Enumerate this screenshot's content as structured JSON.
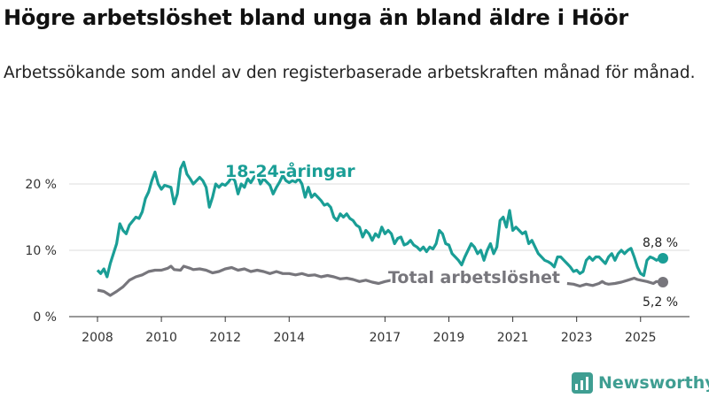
{
  "title": "Högre arbetslöshet bland unga än bland äldre i Höör",
  "subtitle": "Arbetssökande som andel av den registerbaserade arbetskraften månad för månad.",
  "brand": {
    "name": "Newsworthy"
  },
  "colors": {
    "youth": "#1a9e96",
    "total": "#77767c",
    "grid": "#dddddd",
    "axis": "#333333",
    "brand": "#3f9e92"
  },
  "chart_data": {
    "type": "line",
    "title": "Högre arbetslöshet bland unga än bland äldre i Höör",
    "xlabel": "",
    "ylabel": "",
    "xlim": [
      2008.0,
      2026.3
    ],
    "ylim": [
      0,
      23
    ],
    "y_ticks": [
      {
        "value": 0,
        "label": "0 %"
      },
      {
        "value": 10,
        "label": "10 %"
      },
      {
        "value": 20,
        "label": "20 %"
      }
    ],
    "x_ticks": [
      {
        "value": 2008,
        "label": "2008"
      },
      {
        "value": 2010,
        "label": "2010"
      },
      {
        "value": 2012,
        "label": "2012"
      },
      {
        "value": 2014,
        "label": "2014"
      },
      {
        "value": 2017,
        "label": "2017"
      },
      {
        "value": 2019,
        "label": "2019"
      },
      {
        "value": 2021,
        "label": "2021"
      },
      {
        "value": 2023,
        "label": "2023"
      },
      {
        "value": 2025,
        "label": "2025"
      }
    ],
    "series": [
      {
        "name": "18-24-åringar",
        "label": "18-24-åringar",
        "end_label": "8,8 %",
        "points": [
          [
            2008.0,
            7.0
          ],
          [
            2008.1,
            6.5
          ],
          [
            2008.2,
            7.2
          ],
          [
            2008.3,
            6.0
          ],
          [
            2008.4,
            8.0
          ],
          [
            2008.5,
            9.5
          ],
          [
            2008.6,
            11.0
          ],
          [
            2008.7,
            14.0
          ],
          [
            2008.8,
            13.0
          ],
          [
            2008.9,
            12.5
          ],
          [
            2009.0,
            13.8
          ],
          [
            2009.2,
            15.0
          ],
          [
            2009.3,
            14.8
          ],
          [
            2009.4,
            15.8
          ],
          [
            2009.5,
            17.8
          ],
          [
            2009.6,
            18.8
          ],
          [
            2009.7,
            20.5
          ],
          [
            2009.8,
            21.8
          ],
          [
            2009.9,
            20.0
          ],
          [
            2010.0,
            19.2
          ],
          [
            2010.1,
            19.8
          ],
          [
            2010.3,
            19.5
          ],
          [
            2010.4,
            17.0
          ],
          [
            2010.5,
            18.5
          ],
          [
            2010.6,
            22.3
          ],
          [
            2010.7,
            23.3
          ],
          [
            2010.8,
            21.5
          ],
          [
            2010.9,
            20.8
          ],
          [
            2011.0,
            20.0
          ],
          [
            2011.1,
            20.5
          ],
          [
            2011.2,
            21.0
          ],
          [
            2011.3,
            20.5
          ],
          [
            2011.4,
            19.5
          ],
          [
            2011.5,
            16.5
          ],
          [
            2011.6,
            18.0
          ],
          [
            2011.7,
            20.0
          ],
          [
            2011.8,
            19.5
          ],
          [
            2011.9,
            20.0
          ],
          [
            2012.0,
            19.8
          ],
          [
            2012.1,
            20.3
          ],
          [
            2012.2,
            21.0
          ],
          [
            2012.3,
            20.5
          ],
          [
            2012.4,
            18.5
          ],
          [
            2012.5,
            20.0
          ],
          [
            2012.6,
            19.5
          ],
          [
            2012.7,
            20.8
          ],
          [
            2012.8,
            20.2
          ],
          [
            2012.9,
            21.0
          ],
          [
            2013.0,
            21.5
          ],
          [
            2013.1,
            20.0
          ],
          [
            2013.2,
            20.8
          ],
          [
            2013.3,
            20.3
          ],
          [
            2013.4,
            19.8
          ],
          [
            2013.5,
            18.5
          ],
          [
            2013.6,
            19.5
          ],
          [
            2013.7,
            20.3
          ],
          [
            2013.8,
            21.3
          ],
          [
            2013.9,
            20.5
          ],
          [
            2014.0,
            20.2
          ],
          [
            2014.1,
            20.5
          ],
          [
            2014.2,
            20.3
          ],
          [
            2014.3,
            20.8
          ],
          [
            2014.4,
            20.0
          ],
          [
            2014.5,
            18.0
          ],
          [
            2014.6,
            19.5
          ],
          [
            2014.7,
            18.0
          ],
          [
            2014.8,
            18.5
          ],
          [
            2014.9,
            18.0
          ],
          [
            2015.0,
            17.5
          ],
          [
            2015.1,
            16.8
          ],
          [
            2015.2,
            17.0
          ],
          [
            2015.3,
            16.5
          ],
          [
            2015.4,
            15.0
          ],
          [
            2015.5,
            14.5
          ],
          [
            2015.6,
            15.5
          ],
          [
            2015.7,
            15.0
          ],
          [
            2015.8,
            15.5
          ],
          [
            2015.9,
            14.8
          ],
          [
            2016.0,
            14.5
          ],
          [
            2016.1,
            13.8
          ],
          [
            2016.2,
            13.5
          ],
          [
            2016.3,
            12.0
          ],
          [
            2016.4,
            13.0
          ],
          [
            2016.5,
            12.5
          ],
          [
            2016.6,
            11.5
          ],
          [
            2016.7,
            12.5
          ],
          [
            2016.8,
            12.0
          ],
          [
            2016.9,
            13.5
          ],
          [
            2017.0,
            12.5
          ],
          [
            2017.1,
            13.0
          ],
          [
            2017.2,
            12.5
          ],
          [
            2017.3,
            11.0
          ],
          [
            2017.4,
            11.8
          ],
          [
            2017.5,
            12.0
          ],
          [
            2017.6,
            10.8
          ],
          [
            2017.7,
            11.0
          ],
          [
            2017.8,
            11.5
          ],
          [
            2017.9,
            10.8
          ],
          [
            2018.0,
            10.5
          ],
          [
            2018.1,
            10.0
          ],
          [
            2018.2,
            10.5
          ],
          [
            2018.3,
            9.8
          ],
          [
            2018.4,
            10.5
          ],
          [
            2018.5,
            10.2
          ],
          [
            2018.6,
            11.0
          ],
          [
            2018.7,
            13.0
          ],
          [
            2018.8,
            12.5
          ],
          [
            2018.9,
            11.0
          ],
          [
            2019.0,
            10.8
          ],
          [
            2019.1,
            9.5
          ],
          [
            2019.2,
            9.0
          ],
          [
            2019.3,
            8.5
          ],
          [
            2019.4,
            7.8
          ],
          [
            2019.5,
            9.0
          ],
          [
            2019.6,
            10.0
          ],
          [
            2019.7,
            11.0
          ],
          [
            2019.8,
            10.5
          ],
          [
            2019.9,
            9.5
          ],
          [
            2020.0,
            10.0
          ],
          [
            2020.1,
            8.5
          ],
          [
            2020.2,
            10.0
          ],
          [
            2020.3,
            11.0
          ],
          [
            2020.4,
            9.5
          ],
          [
            2020.5,
            10.5
          ],
          [
            2020.6,
            14.5
          ],
          [
            2020.7,
            15.0
          ],
          [
            2020.8,
            13.5
          ],
          [
            2020.9,
            16.0
          ],
          [
            2021.0,
            13.0
          ],
          [
            2021.1,
            13.5
          ],
          [
            2021.2,
            13.0
          ],
          [
            2021.3,
            12.5
          ],
          [
            2021.4,
            12.8
          ],
          [
            2021.5,
            11.0
          ],
          [
            2021.6,
            11.5
          ],
          [
            2021.7,
            10.5
          ],
          [
            2021.8,
            9.5
          ],
          [
            2021.9,
            9.0
          ],
          [
            2022.0,
            8.5
          ],
          [
            2022.1,
            8.3
          ],
          [
            2022.2,
            8.0
          ],
          [
            2022.3,
            7.5
          ],
          [
            2022.4,
            9.0
          ],
          [
            2022.5,
            9.0
          ],
          [
            2022.6,
            8.5
          ],
          [
            2022.7,
            8.0
          ],
          [
            2022.8,
            7.5
          ],
          [
            2022.9,
            6.8
          ],
          [
            2023.0,
            7.0
          ],
          [
            2023.1,
            6.5
          ],
          [
            2023.2,
            6.8
          ],
          [
            2023.3,
            8.5
          ],
          [
            2023.4,
            9.0
          ],
          [
            2023.5,
            8.5
          ],
          [
            2023.6,
            9.0
          ],
          [
            2023.7,
            9.0
          ],
          [
            2023.8,
            8.5
          ],
          [
            2023.9,
            8.0
          ],
          [
            2024.0,
            9.0
          ],
          [
            2024.1,
            9.5
          ],
          [
            2024.2,
            8.5
          ],
          [
            2024.3,
            9.5
          ],
          [
            2024.4,
            10.0
          ],
          [
            2024.5,
            9.5
          ],
          [
            2024.6,
            10.0
          ],
          [
            2024.7,
            10.3
          ],
          [
            2024.8,
            9.0
          ],
          [
            2024.9,
            7.5
          ],
          [
            2025.0,
            6.5
          ],
          [
            2025.1,
            6.2
          ],
          [
            2025.2,
            8.5
          ],
          [
            2025.3,
            9.0
          ],
          [
            2025.4,
            8.8
          ],
          [
            2025.5,
            8.5
          ],
          [
            2025.6,
            8.8
          ],
          [
            2025.7,
            8.8
          ]
        ]
      },
      {
        "name": "Total arbetslöshet",
        "label": "Total arbetslöshet",
        "end_label": "5,2 %",
        "points": [
          [
            2008.0,
            4.0
          ],
          [
            2008.2,
            3.8
          ],
          [
            2008.4,
            3.2
          ],
          [
            2008.6,
            3.8
          ],
          [
            2008.8,
            4.5
          ],
          [
            2009.0,
            5.5
          ],
          [
            2009.2,
            6.0
          ],
          [
            2009.4,
            6.3
          ],
          [
            2009.6,
            6.8
          ],
          [
            2009.8,
            7.0
          ],
          [
            2010.0,
            7.0
          ],
          [
            2010.2,
            7.3
          ],
          [
            2010.3,
            7.6
          ],
          [
            2010.4,
            7.1
          ],
          [
            2010.6,
            7.0
          ],
          [
            2010.7,
            7.6
          ],
          [
            2010.9,
            7.3
          ],
          [
            2011.0,
            7.1
          ],
          [
            2011.2,
            7.2
          ],
          [
            2011.4,
            7.0
          ],
          [
            2011.6,
            6.6
          ],
          [
            2011.8,
            6.8
          ],
          [
            2012.0,
            7.2
          ],
          [
            2012.2,
            7.4
          ],
          [
            2012.4,
            7.0
          ],
          [
            2012.6,
            7.2
          ],
          [
            2012.8,
            6.8
          ],
          [
            2013.0,
            7.0
          ],
          [
            2013.2,
            6.8
          ],
          [
            2013.4,
            6.5
          ],
          [
            2013.6,
            6.8
          ],
          [
            2013.8,
            6.5
          ],
          [
            2014.0,
            6.5
          ],
          [
            2014.2,
            6.3
          ],
          [
            2014.4,
            6.5
          ],
          [
            2014.6,
            6.2
          ],
          [
            2014.8,
            6.3
          ],
          [
            2015.0,
            6.0
          ],
          [
            2015.2,
            6.2
          ],
          [
            2015.4,
            6.0
          ],
          [
            2015.6,
            5.7
          ],
          [
            2015.8,
            5.8
          ],
          [
            2016.0,
            5.6
          ],
          [
            2016.2,
            5.3
          ],
          [
            2016.4,
            5.5
          ],
          [
            2016.6,
            5.2
          ],
          [
            2016.8,
            5.0
          ],
          [
            2017.0,
            5.3
          ],
          [
            2017.2,
            5.5
          ],
          [
            2017.4,
            5.6
          ]
        ],
        "points_after_label": [
          [
            2022.7,
            5.0
          ],
          [
            2022.9,
            4.9
          ],
          [
            2023.1,
            4.6
          ],
          [
            2023.3,
            4.9
          ],
          [
            2023.5,
            4.7
          ],
          [
            2023.7,
            5.0
          ],
          [
            2023.8,
            5.3
          ],
          [
            2023.9,
            5.0
          ],
          [
            2024.0,
            4.9
          ],
          [
            2024.2,
            5.0
          ],
          [
            2024.4,
            5.2
          ],
          [
            2024.6,
            5.5
          ],
          [
            2024.8,
            5.8
          ],
          [
            2024.9,
            5.6
          ],
          [
            2025.0,
            5.5
          ],
          [
            2025.2,
            5.3
          ],
          [
            2025.4,
            5.0
          ],
          [
            2025.5,
            5.3
          ],
          [
            2025.7,
            5.2
          ]
        ]
      }
    ]
  }
}
